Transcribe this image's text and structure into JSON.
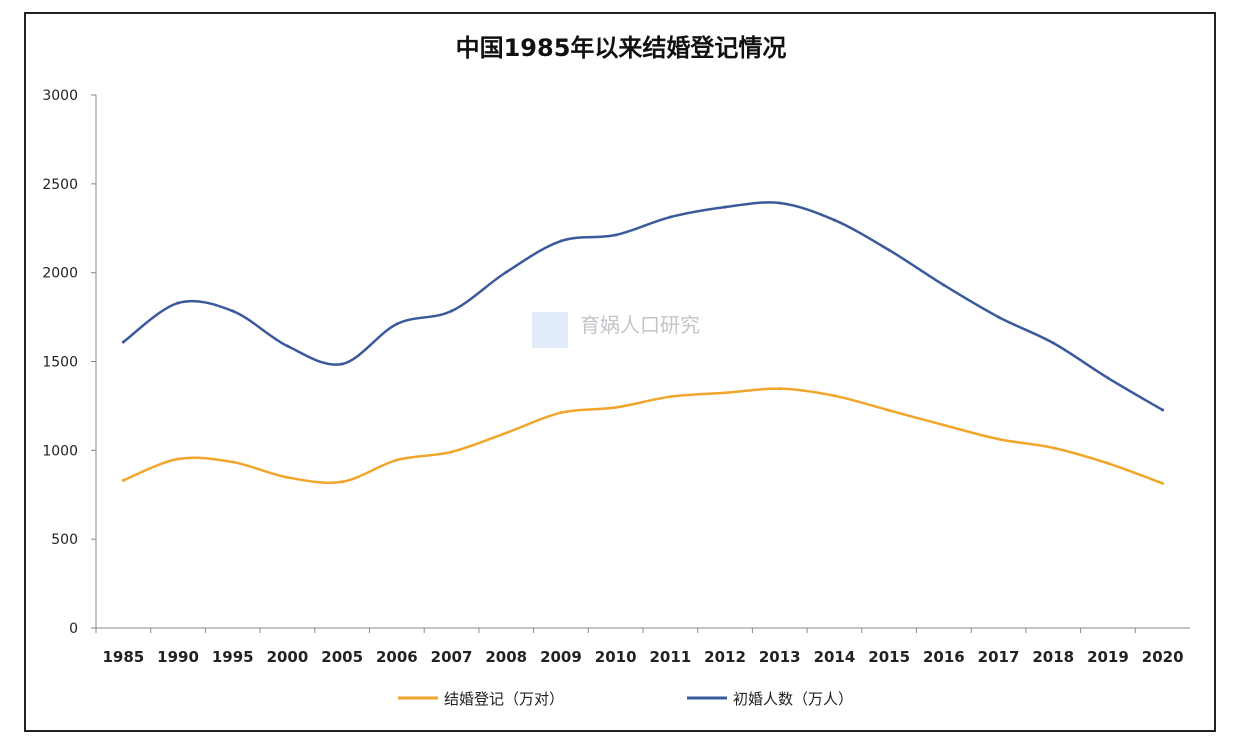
{
  "chart_data": {
    "type": "line",
    "title": "中国1985年以来结婚登记情况",
    "watermark": "育娲人口研究",
    "xlabel": "",
    "ylabel": "",
    "categories": [
      "1985",
      "1990",
      "1995",
      "2000",
      "2005",
      "2006",
      "2007",
      "2008",
      "2009",
      "2010",
      "2011",
      "2012",
      "2013",
      "2014",
      "2015",
      "2016",
      "2017",
      "2018",
      "2019",
      "2020"
    ],
    "ylim": [
      0,
      3000
    ],
    "yticks": [
      0,
      500,
      1000,
      1500,
      2000,
      2500,
      3000
    ],
    "legend_position": "bottom",
    "series": [
      {
        "name": "结婚登记（万对）",
        "color": "#f0a62a",
        "values": [
          831,
          951,
          934,
          848,
          823,
          945,
          991,
          1098,
          1212,
          1241,
          1302,
          1324,
          1347,
          1307,
          1225,
          1142,
          1063,
          1014,
          927,
          814
        ]
      },
      {
        "name": "初婚人数（万人）",
        "color": "#3a5a9c",
        "values": [
          1610,
          1829,
          1784,
          1587,
          1486,
          1711,
          1784,
          2003,
          2178,
          2212,
          2313,
          2369,
          2392,
          2296,
          2127,
          1930,
          1750,
          1604,
          1407,
          1227
        ]
      }
    ]
  }
}
